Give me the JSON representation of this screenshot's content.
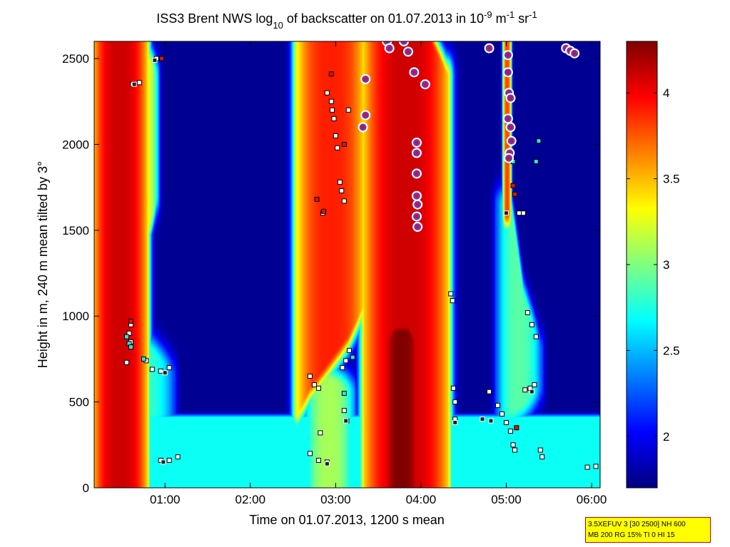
{
  "chart_data": {
    "type": "heatmap",
    "title": {
      "prefix": "ISS3 Brent NWS log",
      "sub": "10",
      "middle": " of backscatter on 01.07.2013 in 10",
      "sup1": "-9",
      "unit_m": " m",
      "sup2": "-1",
      "unit_sr": " sr",
      "sup3": "-1"
    },
    "xlabel": "Time on 01.07.2013, 1200 s mean",
    "ylabel": "Height in m, 240 m mean tilted by 3°",
    "xlim": [
      0.17,
      6.1
    ],
    "ylim": [
      0,
      2600
    ],
    "x_ticks": [
      {
        "value": 1,
        "label": "01:00"
      },
      {
        "value": 2,
        "label": "02:00"
      },
      {
        "value": 3,
        "label": "03:00"
      },
      {
        "value": 4,
        "label": "04:00"
      },
      {
        "value": 5,
        "label": "05:00"
      },
      {
        "value": 6,
        "label": "06:00"
      }
    ],
    "y_ticks": [
      {
        "value": 0,
        "label": "0"
      },
      {
        "value": 500,
        "label": "500"
      },
      {
        "value": 1000,
        "label": "1000"
      },
      {
        "value": 1500,
        "label": "1500"
      },
      {
        "value": 2000,
        "label": "2000"
      },
      {
        "value": 2500,
        "label": "2500"
      }
    ],
    "colorbar": {
      "range": [
        1.7,
        4.3
      ],
      "ticks": [
        {
          "value": 2,
          "label": "2"
        },
        {
          "value": 2.5,
          "label": "2.5"
        },
        {
          "value": 3,
          "label": "3"
        },
        {
          "value": 3.5,
          "label": "3.5"
        },
        {
          "value": 4,
          "label": "4"
        }
      ],
      "colormap": "jet"
    },
    "background_value": 1.75,
    "boundary_layer": {
      "top": 440,
      "value": 2.7
    },
    "layers": [
      {
        "x": [
          0.17,
          0.3,
          0.45,
          0.55,
          0.7,
          0.78
        ],
        "bottom": [
          0,
          0,
          0,
          0,
          0,
          0
        ],
        "top": [
          2600,
          2600,
          2600,
          2600,
          2600,
          2600
        ],
        "value": 4.1,
        "halo": 0.06
      },
      {
        "x": [
          0.6,
          0.7,
          0.8,
          0.9
        ],
        "bottom": [
          1600,
          1500,
          1500,
          1700
        ],
        "top": [
          2600,
          2600,
          2500,
          2400
        ],
        "value": 3.3,
        "halo": 0.04
      },
      {
        "x": [
          0.4,
          0.6,
          0.8,
          1.0,
          1.1
        ],
        "bottom": [
          440,
          440,
          440,
          440,
          440
        ],
        "top": [
          1050,
          950,
          800,
          700,
          650
        ],
        "value": 2.8,
        "halo": 0.05
      },
      {
        "x": [
          2.55,
          2.7,
          2.85,
          3.0,
          3.15,
          3.35
        ],
        "bottom": [
          440,
          600,
          700,
          800,
          900,
          1100
        ],
        "top": [
          2600,
          2600,
          2600,
          2600,
          2600,
          2600
        ],
        "value": 3.9,
        "halo": 0.07
      },
      {
        "x": [
          2.65,
          2.8,
          3.0,
          3.2
        ],
        "bottom": [
          0,
          0,
          0,
          0
        ],
        "top": [
          700,
          650,
          600,
          550
        ],
        "value": 3.1,
        "halo": 0.05
      },
      {
        "x": [
          3.35,
          3.5,
          3.7,
          3.9,
          4.1,
          4.3
        ],
        "bottom": [
          0,
          0,
          0,
          0,
          0,
          0
        ],
        "top": [
          2600,
          2600,
          2600,
          2600,
          2600,
          2400
        ],
        "value": 4.1,
        "halo": 0.08
      },
      {
        "x": [
          3.55,
          3.7,
          3.85,
          4.0
        ],
        "bottom": [
          0,
          0,
          0,
          0
        ],
        "top": [
          800,
          900,
          900,
          800
        ],
        "value": 4.3,
        "halo": 0.06
      },
      {
        "x": [
          4.9,
          5.05,
          5.2,
          5.4
        ],
        "bottom": [
          440,
          450,
          500,
          600
        ],
        "top": [
          1650,
          1650,
          1100,
          800
        ],
        "value": 2.9,
        "halo": 0.05
      },
      {
        "x": [
          4.97,
          5.05
        ],
        "bottom": [
          1600,
          1600
        ],
        "top": [
          2600,
          2600
        ],
        "value": 3.8,
        "halo": 0.02
      }
    ],
    "cloud_base_markers": {
      "white_squares": [
        [
          0.9,
          2500
        ],
        [
          0.62,
          2350
        ],
        [
          0.7,
          2360
        ],
        [
          2.9,
          2300
        ],
        [
          2.95,
          2250
        ],
        [
          2.96,
          2200
        ],
        [
          2.98,
          2150
        ],
        [
          3.0,
          2050
        ],
        [
          3.02,
          1980
        ],
        [
          3.05,
          1780
        ],
        [
          3.07,
          1730
        ],
        [
          3.1,
          1670
        ],
        [
          2.85,
          1600
        ],
        [
          3.15,
          2200
        ],
        [
          0.6,
          950
        ],
        [
          0.58,
          900
        ],
        [
          0.6,
          850
        ],
        [
          0.55,
          730
        ],
        [
          0.78,
          740
        ],
        [
          0.85,
          690
        ],
        [
          0.95,
          680
        ],
        [
          1.05,
          700
        ],
        [
          0.95,
          160
        ],
        [
          1.05,
          160
        ],
        [
          1.15,
          180
        ],
        [
          2.7,
          650
        ],
        [
          2.75,
          600
        ],
        [
          2.8,
          580
        ],
        [
          2.7,
          200
        ],
        [
          2.8,
          160
        ],
        [
          2.9,
          150
        ],
        [
          2.82,
          320
        ],
        [
          3.08,
          700
        ],
        [
          3.12,
          740
        ],
        [
          3.16,
          800
        ],
        [
          3.1,
          450
        ],
        [
          3.13,
          390
        ],
        [
          4.35,
          1130
        ],
        [
          4.37,
          1090
        ],
        [
          4.38,
          580
        ],
        [
          4.4,
          500
        ],
        [
          4.4,
          400
        ],
        [
          4.8,
          560
        ],
        [
          4.9,
          480
        ],
        [
          4.95,
          430
        ],
        [
          5.0,
          380
        ],
        [
          5.05,
          330
        ],
        [
          5.08,
          250
        ],
        [
          5.1,
          220
        ],
        [
          5.22,
          570
        ],
        [
          5.28,
          580
        ],
        [
          5.33,
          600
        ],
        [
          5.25,
          1020
        ],
        [
          5.3,
          950
        ],
        [
          5.35,
          880
        ],
        [
          5.4,
          220
        ],
        [
          5.42,
          180
        ],
        [
          5.95,
          120
        ],
        [
          6.05,
          125
        ],
        [
          5.2,
          1600
        ],
        [
          5.15,
          1600
        ]
      ],
      "cyan_squares": [
        [
          0.55,
          880
        ],
        [
          0.58,
          840
        ],
        [
          0.6,
          820
        ],
        [
          0.75,
          750
        ],
        [
          3.1,
          550
        ],
        [
          3.2,
          760
        ],
        [
          5.38,
          2020
        ],
        [
          5.35,
          1900
        ],
        [
          5.08,
          1900
        ]
      ],
      "red_squares": [
        [
          0.96,
          2500
        ],
        [
          0.6,
          970
        ],
        [
          2.95,
          2410
        ],
        [
          3.1,
          2000
        ],
        [
          2.78,
          1680
        ],
        [
          5.1,
          1710
        ],
        [
          5.08,
          1760
        ],
        [
          5.12,
          350
        ],
        [
          2.86,
          1610
        ]
      ],
      "dark_squares": [
        [
          0.88,
          2490
        ],
        [
          0.64,
          2350
        ],
        [
          1.0,
          670
        ],
        [
          0.98,
          150
        ],
        [
          2.9,
          140
        ],
        [
          3.12,
          390
        ],
        [
          4.82,
          390
        ],
        [
          4.4,
          380
        ],
        [
          5.3,
          560
        ],
        [
          4.72,
          400
        ],
        [
          5.0,
          1600
        ]
      ]
    },
    "circle_markers": [
      [
        3.6,
        2600
      ],
      [
        3.63,
        2560
      ],
      [
        3.8,
        2600
      ],
      [
        3.85,
        2540
      ],
      [
        3.92,
        2420
      ],
      [
        4.05,
        2350
      ],
      [
        3.35,
        2380
      ],
      [
        3.35,
        2170
      ],
      [
        3.32,
        2100
      ],
      [
        3.95,
        2010
      ],
      [
        3.95,
        1950
      ],
      [
        3.95,
        1830
      ],
      [
        3.95,
        1700
      ],
      [
        3.96,
        1650
      ],
      [
        3.95,
        1580
      ],
      [
        3.96,
        1520
      ],
      [
        4.8,
        2560
      ],
      [
        5.02,
        2520
      ],
      [
        5.02,
        2420
      ],
      [
        5.03,
        2300
      ],
      [
        5.05,
        2270
      ],
      [
        5.02,
        2150
      ],
      [
        5.05,
        2100
      ],
      [
        5.06,
        2020
      ],
      [
        5.04,
        1950
      ],
      [
        5.03,
        1920
      ],
      [
        5.7,
        2560
      ],
      [
        5.75,
        2545
      ],
      [
        5.8,
        2530
      ]
    ],
    "info_box": [
      "3.5XEFUV 3 [30 2500] NH 600",
      "MB 200 RG 15% TI 0 HI 15"
    ]
  }
}
